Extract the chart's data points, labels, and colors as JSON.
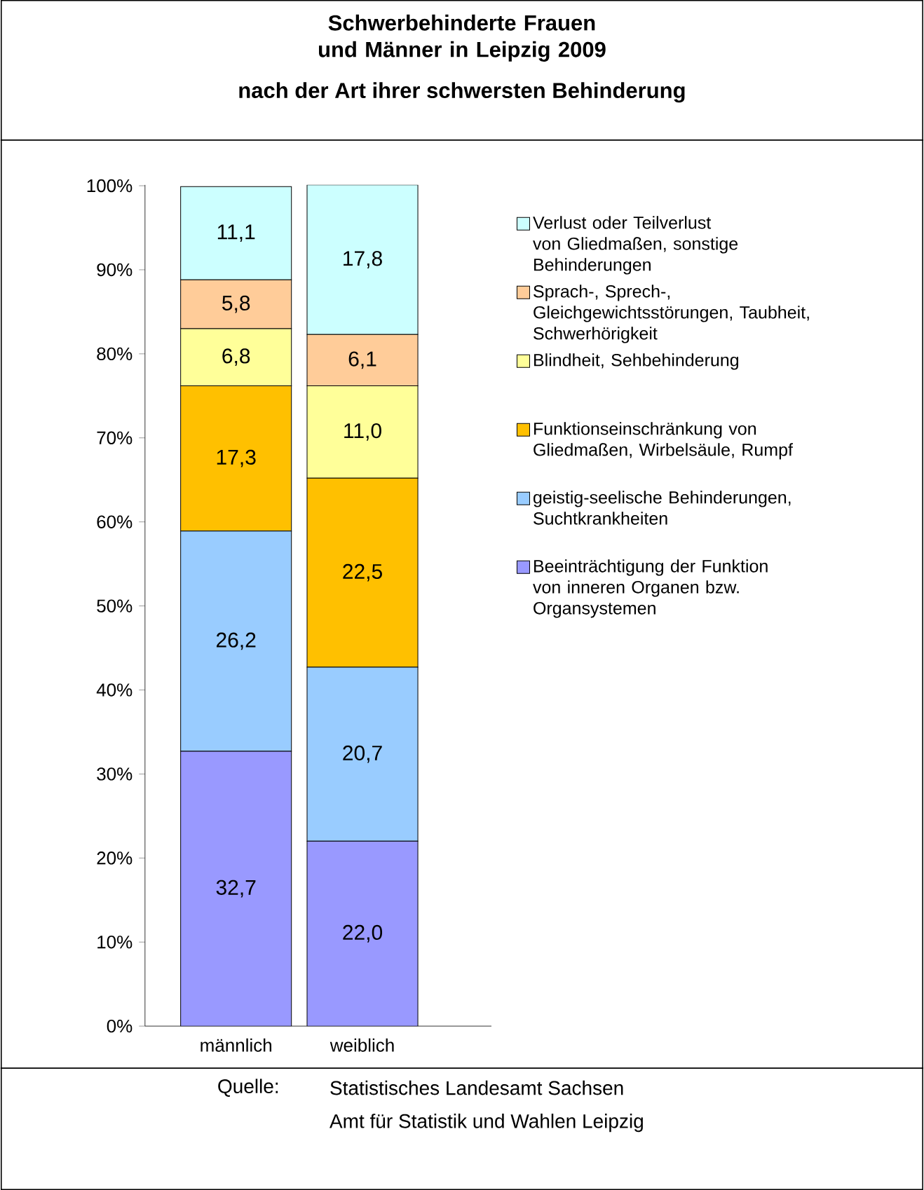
{
  "chart_data": {
    "type": "bar",
    "stacked": true,
    "title": "Schwerbehinderte Frauen und Männer in Leipzig 2009",
    "subtitle": "nach der Art ihrer schwersten Behinderung",
    "categories": [
      "männlich",
      "weiblich"
    ],
    "series": [
      {
        "name": "Beeinträchtigung der Funktion von inneren Organen bzw. Organsystemen",
        "color": "#9999ff",
        "values": [
          32.7,
          22.0
        ],
        "value_labels": [
          "32,7",
          "22,0"
        ]
      },
      {
        "name": "geistig-seelische Behinderungen, Suchtkrankheiten",
        "color": "#99ccff",
        "values": [
          26.2,
          20.7
        ],
        "value_labels": [
          "26,2",
          "20,7"
        ]
      },
      {
        "name": "Funktionseinschränkung von Gliedmaßen, Wirbelsäule, Rumpf",
        "color": "#ffc000",
        "values": [
          17.3,
          22.5
        ],
        "value_labels": [
          "17,3",
          "22,5"
        ]
      },
      {
        "name": "Blindheit, Sehbehinderung",
        "color": "#ffff99",
        "values": [
          6.8,
          11.0
        ],
        "value_labels": [
          "6,8",
          "11,0"
        ]
      },
      {
        "name": "Sprach-, Sprech-, Gleichgewichtsstörungen, Taubheit, Schwerhörigkeit",
        "color": "#ffcc99",
        "values": [
          5.8,
          6.1
        ],
        "value_labels": [
          "5,8",
          "6,1"
        ]
      },
      {
        "name": "Verlust oder Teilverlust von Gliedmaßen, sonstige Behinderungen",
        "color": "#ccffff",
        "values": [
          11.1,
          17.8
        ],
        "value_labels": [
          "11,1",
          "17,8"
        ]
      }
    ],
    "ylim": [
      0,
      100.1
    ],
    "yticks": [
      {
        "value": 0,
        "label": "0%"
      },
      {
        "value": 10,
        "label": "10%"
      },
      {
        "value": 20,
        "label": "20%"
      },
      {
        "value": 30,
        "label": "30%"
      },
      {
        "value": 40,
        "label": "40%"
      },
      {
        "value": 50,
        "label": "50%"
      },
      {
        "value": 60,
        "label": "60%"
      },
      {
        "value": 70,
        "label": "70%"
      },
      {
        "value": 80,
        "label": "80%"
      },
      {
        "value": 90,
        "label": "90%"
      },
      {
        "value": 100,
        "label": "100%"
      }
    ],
    "legend": "right",
    "grid": false,
    "annotations": [
      "Quelle:",
      "Statistisches Landesamt Sachsen",
      "Amt für Statistik und Wahlen Leipzig"
    ]
  }
}
